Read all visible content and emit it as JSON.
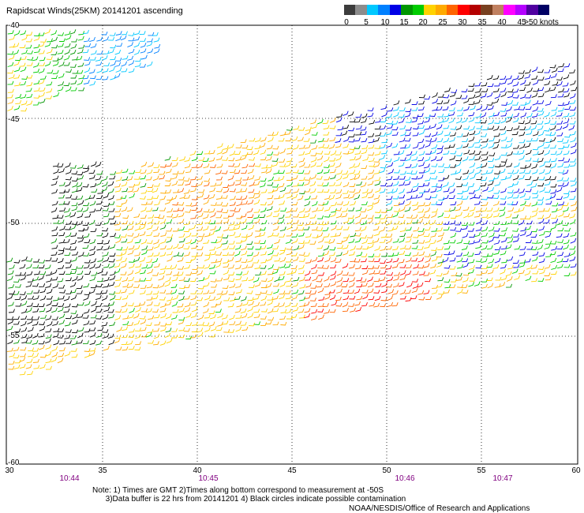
{
  "title": "Rapidscat Winds(25KM) 20141201 ascending",
  "legend": {
    "colors": [
      "#3c3c3c",
      "#8c8c8c",
      "#00c8ff",
      "#0080ff",
      "#0000e6",
      "#009600",
      "#00cc00",
      "#ffd200",
      "#ffaa00",
      "#ff6400",
      "#ff0000",
      "#b40000",
      "#784020",
      "#c08060",
      "#ff00ff",
      "#b400ff",
      "#5000a0",
      "#000064"
    ],
    "ticks": [
      "0",
      "5",
      "10",
      "15",
      "20",
      "25",
      "30",
      "35",
      "40",
      "45",
      ">50 knots"
    ]
  },
  "axes": {
    "lat_labels": [
      "-40",
      "-45",
      "-50",
      "-55",
      "-60"
    ],
    "lon_labels": [
      "30",
      "35",
      "40",
      "45",
      "50",
      "55",
      "60"
    ],
    "time_labels": [
      "10:44",
      "10:45",
      "10:46",
      "10:47"
    ]
  },
  "notes": {
    "line1": "Note: 1) Times are GMT 2)Times along bottom correspond to measurement at -50S",
    "line2": "      3)Data buffer is 22 hrs from 20141201 4) Black circles indicate possible contamination"
  },
  "credit": "NOAA/NESDIS/Office of Research and Applications"
}
